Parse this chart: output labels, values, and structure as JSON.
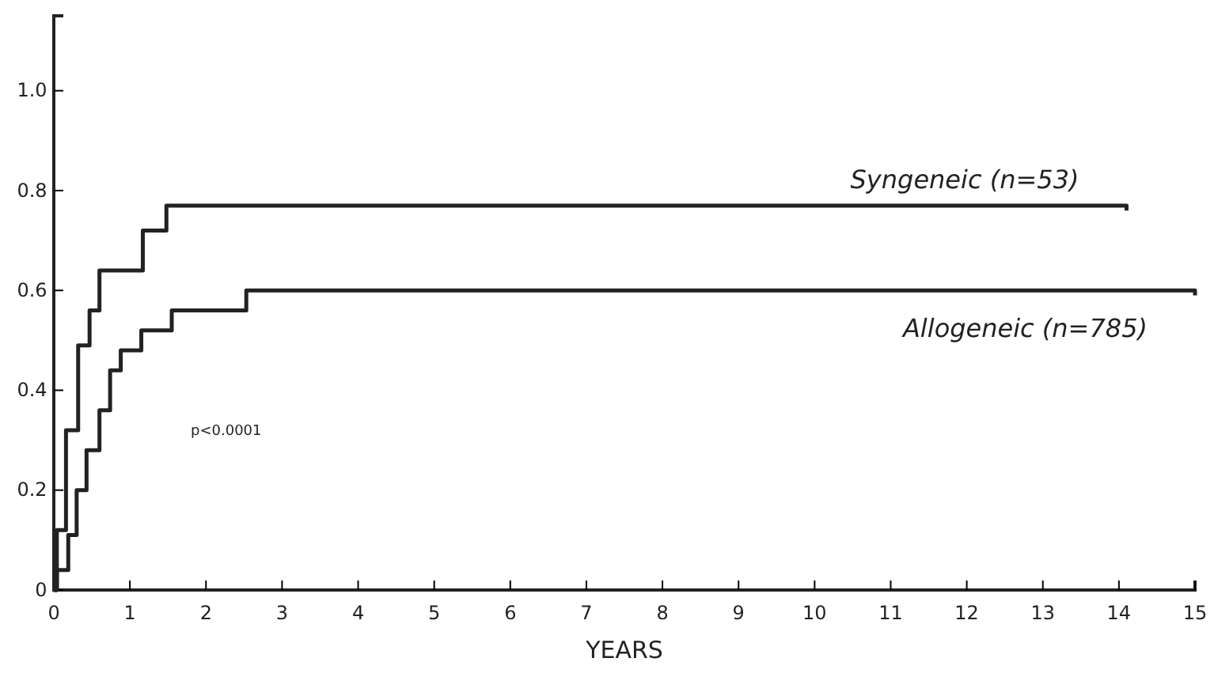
{
  "chart_data": {
    "type": "step",
    "xlabel": "YEARS",
    "xlim": [
      0,
      15
    ],
    "xticks": [
      0,
      1,
      2,
      3,
      4,
      5,
      6,
      7,
      8,
      9,
      10,
      11,
      12,
      13,
      14,
      15
    ],
    "ylim": [
      0,
      1.15
    ],
    "yticks": [
      0,
      {
        "value": 0.2,
        "label": "0.2"
      },
      {
        "value": 0.4,
        "label": "0.4"
      },
      {
        "value": 0.6,
        "label": "0.6"
      },
      {
        "value": 0.8,
        "label": "0.8"
      },
      {
        "value": 1.0,
        "label": "1.0"
      }
    ],
    "grid": false,
    "legend": false,
    "marker": "none",
    "line_style": "solid",
    "annotations": [
      "p<0.0001"
    ],
    "series": [
      {
        "name": "Syngeneic (n=53)",
        "color": "#222222",
        "x": [
          0,
          0.04,
          0.16,
          0.32,
          0.47,
          0.6,
          1.17,
          1.48,
          14.1
        ],
        "values": [
          0,
          0.12,
          0.32,
          0.49,
          0.56,
          0.64,
          0.72,
          0.77,
          0.76
        ]
      },
      {
        "name": "Allogeneic (n=785)",
        "color": "#222222",
        "x": [
          0,
          0.04,
          0.19,
          0.3,
          0.43,
          0.6,
          0.74,
          0.88,
          1.15,
          1.55,
          2.53,
          15
        ],
        "values": [
          0,
          0.04,
          0.11,
          0.2,
          0.28,
          0.36,
          0.44,
          0.48,
          0.52,
          0.56,
          0.6,
          0.59
        ]
      }
    ]
  }
}
